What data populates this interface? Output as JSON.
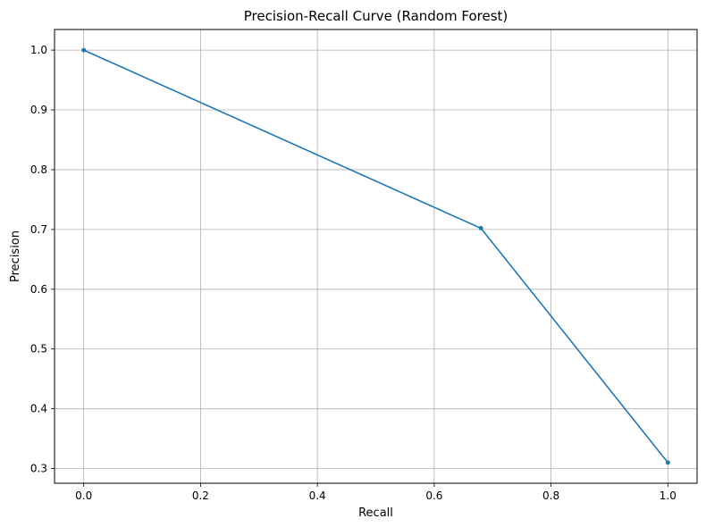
{
  "chart_data": {
    "type": "line",
    "title": "Precision-Recall Curve (Random Forest)",
    "xlabel": "Recall",
    "ylabel": "Precision",
    "x": [
      0.0,
      0.68,
      1.0
    ],
    "y": [
      1.0,
      0.702,
      0.31
    ],
    "xlim": [
      -0.05,
      1.05
    ],
    "ylim": [
      0.2755,
      1.0345
    ],
    "x_ticks": [
      0.0,
      0.2,
      0.4,
      0.6,
      0.8,
      1.0
    ],
    "x_tick_labels": [
      "0.0",
      "0.2",
      "0.4",
      "0.6",
      "0.8",
      "1.0"
    ],
    "y_ticks": [
      0.3,
      0.4,
      0.5,
      0.6,
      0.7,
      0.8,
      0.9,
      1.0
    ],
    "y_tick_labels": [
      "0.3",
      "0.4",
      "0.5",
      "0.6",
      "0.7",
      "0.8",
      "0.9",
      "1.0"
    ],
    "grid": true,
    "marker": "point",
    "colors": {
      "line": "#1f77b4",
      "grid": "#b0b0b0",
      "axes": "#000000"
    }
  }
}
